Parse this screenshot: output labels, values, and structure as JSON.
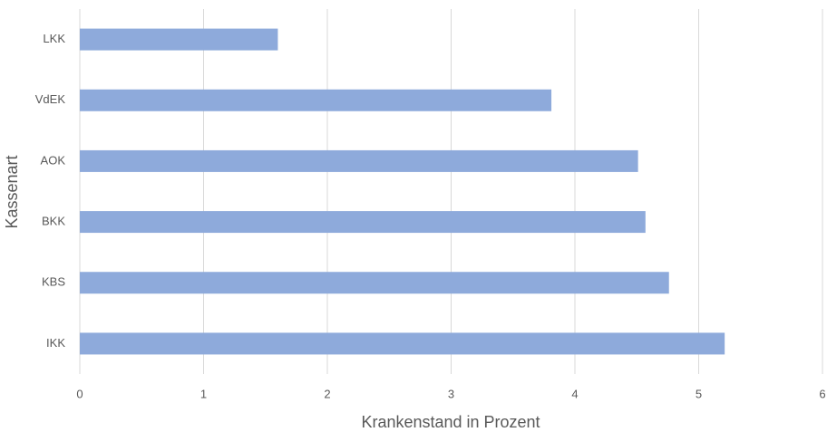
{
  "chart_data": {
    "type": "barh",
    "xlabel": "Krankenstand in Prozent",
    "ylabel": "Kassenart",
    "categories": [
      "LKK",
      "VdEK",
      "AOK",
      "BKK",
      "KBS",
      "IKK"
    ],
    "values": [
      1.6,
      3.81,
      4.51,
      4.57,
      4.76,
      5.21
    ],
    "color": "#8eaadb",
    "xlim": [
      0,
      6
    ],
    "xticks": [
      0,
      1,
      2,
      3,
      4,
      5,
      6
    ],
    "grid": true
  }
}
